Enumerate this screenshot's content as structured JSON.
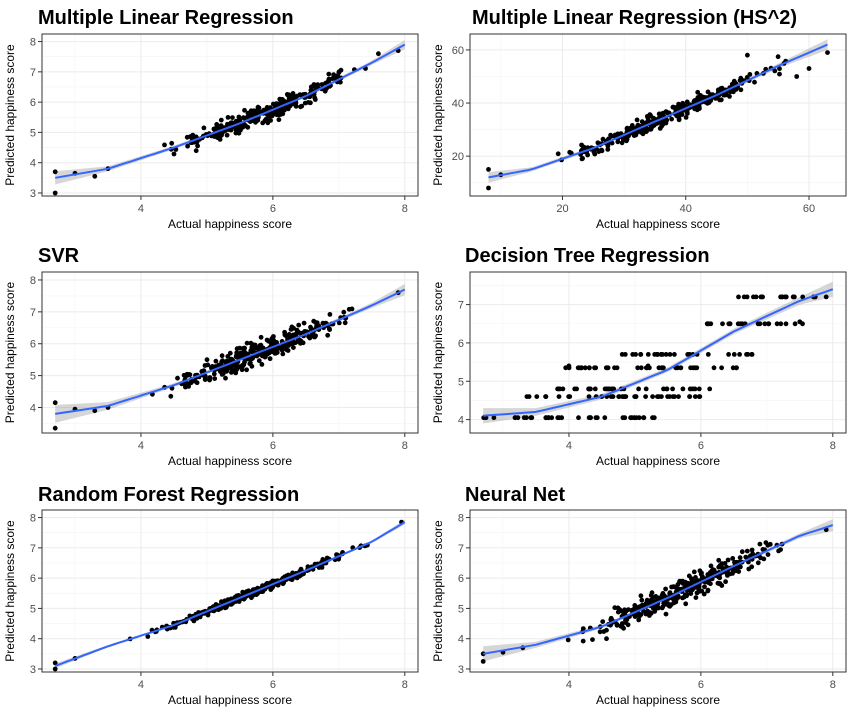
{
  "chart_data": [
    {
      "type": "scatter",
      "title": "Multiple Linear Regression",
      "xlabel": "Actual happiness score",
      "ylabel": "Predicted happiness score",
      "xticks": [
        4,
        6,
        8
      ],
      "yticks": [
        3,
        4,
        5,
        6,
        7,
        8
      ],
      "xlim": [
        2.5,
        8.2
      ],
      "ylim": [
        2.9,
        8.25
      ],
      "smooth": {
        "x": [
          2.7,
          3.5,
          4.5,
          5.5,
          6.5,
          7.5,
          8.0
        ],
        "y": [
          3.5,
          3.8,
          4.5,
          5.3,
          6.2,
          7.3,
          7.9
        ],
        "band": [
          0.22,
          0.08,
          0.06,
          0.05,
          0.05,
          0.07,
          0.15
        ]
      },
      "points": {
        "n": 320,
        "cluster": [
          4.0,
          7.7
        ],
        "seed": 11,
        "noise": 0.32,
        "outliers": [
          [
            2.7,
            3.0
          ],
          [
            2.7,
            3.7
          ],
          [
            3.0,
            3.65
          ],
          [
            3.3,
            3.55
          ],
          [
            3.5,
            3.8
          ],
          [
            7.6,
            7.6
          ],
          [
            7.9,
            7.7
          ]
        ]
      }
    },
    {
      "type": "scatter",
      "title": "Multiple Linear Regression (HS^2)",
      "xlabel": "Actual happiness score",
      "ylabel": "Predicted happiness score",
      "xticks": [
        20,
        40,
        60
      ],
      "yticks": [
        20,
        40,
        60
      ],
      "xlim": [
        5,
        66
      ],
      "ylim": [
        5,
        66
      ],
      "smooth": {
        "x": [
          8,
          15,
          25,
          35,
          45,
          55,
          63
        ],
        "y": [
          12,
          15,
          23,
          33,
          43,
          54,
          62
        ],
        "band": [
          2.0,
          0.8,
          0.6,
          0.6,
          0.7,
          0.9,
          2.0
        ]
      },
      "points": {
        "n": 320,
        "cluster": [
          14,
          60
        ],
        "seed": 23,
        "noise": 3.0,
        "outliers": [
          [
            8,
            8
          ],
          [
            8,
            15
          ],
          [
            10,
            13
          ],
          [
            63,
            59
          ],
          [
            60,
            53
          ],
          [
            58,
            50
          ],
          [
            50,
            58
          ]
        ]
      }
    },
    {
      "type": "scatter",
      "title": "SVR",
      "xlabel": "Actual happiness score",
      "ylabel": "Predicted happiness score",
      "xticks": [
        4,
        6,
        8
      ],
      "yticks": [
        4,
        5,
        6,
        7,
        8
      ],
      "xlim": [
        2.5,
        8.2
      ],
      "ylim": [
        3.2,
        8.25
      ],
      "smooth": {
        "x": [
          2.7,
          3.5,
          4.5,
          5.5,
          6.5,
          7.5,
          8.0
        ],
        "y": [
          3.8,
          4.05,
          4.7,
          5.5,
          6.3,
          7.2,
          7.7
        ],
        "band": [
          0.28,
          0.12,
          0.06,
          0.05,
          0.05,
          0.08,
          0.18
        ]
      },
      "points": {
        "n": 320,
        "cluster": [
          4.0,
          7.7
        ],
        "seed": 37,
        "noise": 0.38,
        "outliers": [
          [
            2.7,
            3.35
          ],
          [
            2.7,
            4.15
          ],
          [
            3.0,
            3.95
          ],
          [
            3.3,
            3.9
          ],
          [
            3.5,
            4.0
          ],
          [
            7.9,
            7.6
          ]
        ]
      }
    },
    {
      "type": "scatter",
      "title": "Decision Tree Regression",
      "xlabel": "Actual happiness score",
      "ylabel": "Predicted happiness score",
      "xticks": [
        4,
        6,
        8
      ],
      "yticks": [
        4,
        5,
        6,
        7
      ],
      "xlim": [
        2.5,
        8.2
      ],
      "ylim": [
        3.65,
        7.85
      ],
      "smooth": {
        "x": [
          2.7,
          3.5,
          4.5,
          5.5,
          6.5,
          7.5,
          8.0
        ],
        "y": [
          4.1,
          4.2,
          4.6,
          5.3,
          6.3,
          7.1,
          7.4
        ],
        "band": [
          0.2,
          0.1,
          0.07,
          0.06,
          0.07,
          0.1,
          0.2
        ]
      },
      "points": {
        "n": 0,
        "seed": 41,
        "steps": [
          {
            "x0": 2.7,
            "x1": 5.3,
            "y": 4.05
          },
          {
            "x0": 3.3,
            "x1": 6.0,
            "y": 4.6
          },
          {
            "x0": 3.8,
            "x1": 6.2,
            "y": 4.8
          },
          {
            "x0": 3.9,
            "x1": 6.6,
            "y": 5.35
          },
          {
            "x0": 4.7,
            "x1": 6.8,
            "y": 5.7
          },
          {
            "x0": 6.0,
            "x1": 7.6,
            "y": 6.5
          },
          {
            "x0": 6.5,
            "x1": 8.0,
            "y": 7.2
          }
        ],
        "outliers": [
          [
            4.0,
            5.4
          ],
          [
            5.2,
            5.4
          ],
          [
            7.5,
            6.55
          ],
          [
            7.9,
            7.2
          ]
        ]
      }
    },
    {
      "type": "scatter",
      "title": "Random Forest Regression",
      "xlabel": "Actual happiness score",
      "ylabel": "Predicted happiness score",
      "xticks": [
        4,
        6,
        8
      ],
      "yticks": [
        3,
        4,
        5,
        6,
        7,
        8
      ],
      "xlim": [
        2.5,
        8.2
      ],
      "ylim": [
        2.9,
        8.25
      ],
      "smooth": {
        "x": [
          2.7,
          3.5,
          4.5,
          5.5,
          6.5,
          7.5,
          8.0
        ],
        "y": [
          3.1,
          3.75,
          4.45,
          5.35,
          6.25,
          7.2,
          7.85
        ],
        "band": [
          0.08,
          0.04,
          0.03,
          0.03,
          0.03,
          0.04,
          0.08
        ]
      },
      "points": {
        "n": 330,
        "cluster": [
          3.6,
          7.8
        ],
        "seed": 53,
        "noise": 0.13,
        "outliers": [
          [
            2.7,
            3.0
          ],
          [
            2.7,
            3.2
          ],
          [
            3.0,
            3.35
          ],
          [
            7.95,
            7.85
          ]
        ]
      }
    },
    {
      "type": "scatter",
      "title": "Neural Net",
      "xlabel": "Actual happiness score",
      "ylabel": "Predicted happiness score",
      "xticks": [
        4,
        6,
        8
      ],
      "yticks": [
        3,
        4,
        5,
        6,
        7,
        8
      ],
      "xlim": [
        2.5,
        8.2
      ],
      "ylim": [
        2.9,
        8.25
      ],
      "smooth": {
        "x": [
          2.7,
          3.5,
          4.5,
          5.5,
          6.5,
          7.5,
          8.0
        ],
        "y": [
          3.5,
          3.8,
          4.4,
          5.35,
          6.4,
          7.4,
          7.75
        ],
        "band": [
          0.25,
          0.1,
          0.06,
          0.05,
          0.06,
          0.08,
          0.2
        ]
      },
      "points": {
        "n": 320,
        "cluster": [
          3.8,
          7.8
        ],
        "seed": 67,
        "noise": 0.4,
        "outliers": [
          [
            2.7,
            3.25
          ],
          [
            2.7,
            3.5
          ],
          [
            3.0,
            3.55
          ],
          [
            3.3,
            3.7
          ],
          [
            7.9,
            7.6
          ]
        ]
      }
    }
  ],
  "colors": {
    "points": "#000000",
    "smooth": "#3366ff",
    "band": "#999999"
  }
}
